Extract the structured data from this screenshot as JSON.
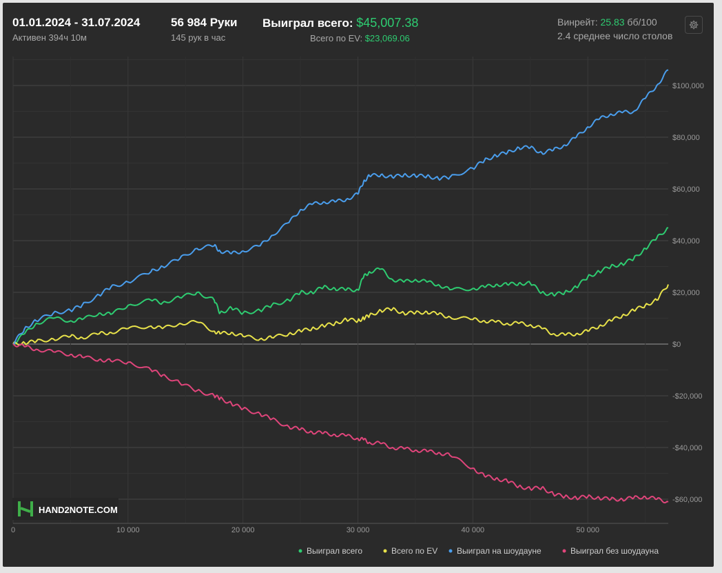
{
  "header": {
    "date_range": "01.01.2024 - 31.07.2024",
    "active": "Активен 394ч 10м",
    "hands": "56 984 Руки",
    "hands_per_hour": "145 рук в час",
    "won_total_label": "Выиграл всего:",
    "won_total_value": "$45,007.38",
    "ev_total_label": "Всего по EV:",
    "ev_total_value": "$23,069.06",
    "winrate_label": "Винрейт:",
    "winrate_value": "25.83",
    "winrate_unit": "бб/100",
    "avg_tables": "2.4 среднее число столов",
    "settings_icon": "gear-icon"
  },
  "watermark": {
    "text": "HAND2NOTE.COM",
    "icon": "h2n-logo-icon"
  },
  "colors": {
    "background": "#2a2a2a",
    "grid": "#3d3d3d",
    "zero_line": "#9a9a9a",
    "axis_text": "#9a9a9a"
  },
  "chart_data": {
    "type": "line",
    "xlabel": "",
    "ylabel": "",
    "xlim": [
      0,
      57000
    ],
    "ylim": [
      -62000,
      110000
    ],
    "x_ticks": [
      0,
      10000,
      20000,
      30000,
      40000,
      50000
    ],
    "x_tick_labels": [
      "0",
      "10 000",
      "20 000",
      "30 000",
      "40 000",
      "50 000"
    ],
    "y_ticks": [
      100000,
      80000,
      60000,
      40000,
      20000,
      0,
      -20000,
      -40000,
      -60000
    ],
    "y_tick_labels": [
      "$100,000",
      "$80,000",
      "$60,000",
      "$40,000",
      "$20,000",
      "$0",
      "-$20,000",
      "-$40,000",
      "-$60,000"
    ],
    "grid": true,
    "legend_position": "bottom-right",
    "series": [
      {
        "name": "Выиграл всего",
        "color": "#2ecc71",
        "x": [
          0,
          1000,
          2000,
          3500,
          5000,
          6000,
          7500,
          8500,
          10000,
          12000,
          13000,
          14500,
          16000,
          17500,
          18000,
          19000,
          20000,
          21500,
          22500,
          24000,
          25000,
          26000,
          27000,
          28000,
          29000,
          30000,
          30500,
          31000,
          32000,
          33000,
          34000,
          35000,
          36000,
          37000,
          38000,
          40000,
          41000,
          42000,
          43000,
          44000,
          45000,
          46000,
          47000,
          48000,
          49000,
          50000,
          51000,
          52000,
          53000,
          54000,
          55000,
          56000,
          57000
        ],
        "y": [
          0,
          4000,
          8000,
          10000,
          9000,
          9500,
          12000,
          11500,
          15000,
          17000,
          16000,
          18000,
          20000,
          17000,
          12000,
          14000,
          12000,
          13000,
          15000,
          17000,
          20000,
          20000,
          22000,
          21500,
          21000,
          21000,
          26000,
          28000,
          29000,
          25000,
          24000,
          25000,
          24000,
          23000,
          21000,
          21500,
          22000,
          23000,
          23000,
          23500,
          23500,
          20000,
          19000,
          20000,
          22000,
          26000,
          28000,
          30000,
          31000,
          33000,
          37000,
          41000,
          45007
        ]
      },
      {
        "name": "Всего по EV",
        "color": "#e8e24a",
        "x": [
          0,
          1000,
          2000,
          3500,
          5000,
          6000,
          7500,
          8500,
          10000,
          12000,
          13000,
          14500,
          16000,
          17500,
          18000,
          19000,
          20000,
          21500,
          22500,
          24000,
          25000,
          26000,
          27000,
          28000,
          29000,
          30000,
          30500,
          31000,
          32000,
          33000,
          34000,
          35000,
          36000,
          37000,
          38000,
          40000,
          41000,
          42000,
          43000,
          44000,
          45000,
          46000,
          47000,
          48000,
          49000,
          50000,
          51000,
          52000,
          53000,
          54000,
          55000,
          56000,
          57000
        ],
        "y": [
          0,
          500,
          1000,
          2000,
          3000,
          2500,
          4000,
          4500,
          6000,
          7000,
          6000,
          8000,
          8500,
          5000,
          4000,
          4500,
          3000,
          2000,
          2500,
          4000,
          5000,
          6000,
          7000,
          8000,
          9500,
          9000,
          10000,
          11000,
          13000,
          13500,
          12000,
          12000,
          12500,
          11500,
          10500,
          9500,
          9000,
          8500,
          8000,
          8000,
          7500,
          6000,
          4000,
          3500,
          4000,
          5000,
          7000,
          9000,
          11000,
          13000,
          15000,
          17000,
          23069
        ]
      },
      {
        "name": "Выиграл на шоудауне",
        "color": "#4a9eed",
        "x": [
          0,
          1000,
          2000,
          3500,
          5000,
          6000,
          7500,
          8500,
          10000,
          12000,
          13000,
          14500,
          16000,
          17500,
          18000,
          19000,
          20000,
          21500,
          22500,
          24000,
          25000,
          26000,
          27000,
          28000,
          29000,
          30000,
          30500,
          31000,
          32000,
          33000,
          34000,
          35000,
          36000,
          37000,
          38000,
          40000,
          41000,
          42000,
          43000,
          44000,
          45000,
          46000,
          47000,
          48000,
          49000,
          50000,
          51000,
          52000,
          53000,
          54000,
          55000,
          56000,
          57000
        ],
        "y": [
          0,
          6000,
          9000,
          12000,
          13000,
          15000,
          19000,
          22000,
          24000,
          28000,
          30000,
          33000,
          37000,
          38000,
          36000,
          35000,
          36000,
          38000,
          42000,
          47000,
          52000,
          54000,
          55000,
          55000,
          56000,
          58000,
          63000,
          65000,
          65500,
          64500,
          65500,
          65000,
          65000,
          64000,
          64500,
          68000,
          71000,
          73000,
          74000,
          76000,
          76000,
          74000,
          75000,
          77000,
          80000,
          84000,
          87000,
          89000,
          89500,
          90000,
          95000,
          100000,
          106000
        ]
      },
      {
        "name": "Выиграл без шоудауна",
        "color": "#e0457b",
        "x": [
          0,
          1000,
          2000,
          3500,
          5000,
          6000,
          7500,
          8500,
          10000,
          12000,
          13000,
          14500,
          16000,
          17500,
          18000,
          19000,
          20000,
          21500,
          22500,
          24000,
          25000,
          26000,
          27000,
          28000,
          29000,
          30000,
          30500,
          31000,
          32000,
          33000,
          34000,
          35000,
          36000,
          37000,
          38000,
          40000,
          41000,
          42000,
          43000,
          44000,
          45000,
          46000,
          47000,
          48000,
          49000,
          50000,
          51000,
          52000,
          53000,
          54000,
          55000,
          56000,
          57000
        ],
        "y": [
          0,
          -1000,
          -2000,
          -3000,
          -4000,
          -5000,
          -6000,
          -6500,
          -7000,
          -10000,
          -12000,
          -15000,
          -18000,
          -20000,
          -21000,
          -23000,
          -25000,
          -27000,
          -29000,
          -32000,
          -33000,
          -34000,
          -34500,
          -35000,
          -35500,
          -36500,
          -37000,
          -38000,
          -38500,
          -40000,
          -40500,
          -41000,
          -41500,
          -42000,
          -43000,
          -48000,
          -51000,
          -52000,
          -53000,
          -55000,
          -56000,
          -55500,
          -58000,
          -59000,
          -59500,
          -59000,
          -59500,
          -60000,
          -60000,
          -59500,
          -59000,
          -60000,
          -61000
        ]
      }
    ]
  }
}
